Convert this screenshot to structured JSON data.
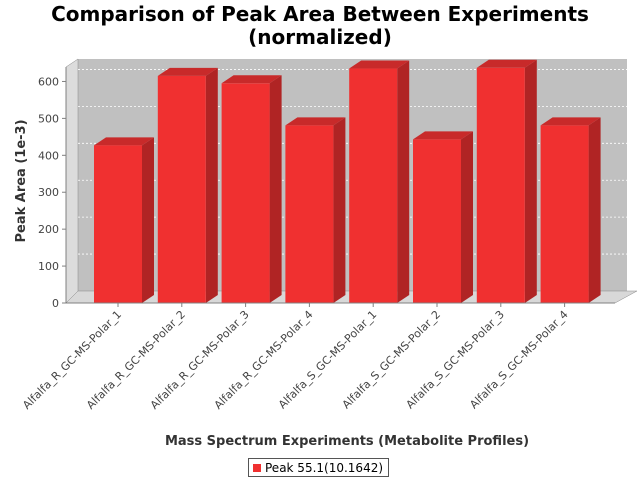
{
  "chart_data": {
    "type": "bar",
    "title_line1": "Comparison of Peak Area Between Experiments",
    "title_line2": "(normalized)",
    "xlabel": "Mass Spectrum Experiments (Metabolite Profiles)",
    "ylabel": "Peak Area (1e-3)",
    "categories": [
      "Alfalfa_R_GC-MS-Polar_1",
      "Alfalfa_R_GC-MS-Polar_2",
      "Alfalfa_R_GC-MS-Polar_3",
      "Alfalfa_R_GC-MS-Polar_4",
      "Alfalfa_S_GC-MS-Polar_1",
      "Alfalfa_S_GC-MS-Polar_2",
      "Alfalfa_S_GC-MS-Polar_3",
      "Alfalfa_S_GC-MS-Polar_4"
    ],
    "series": [
      {
        "name": "Peak 55.1(10.1642)",
        "values": [
          427,
          615,
          595,
          481,
          635,
          443,
          637,
          481
        ]
      }
    ],
    "ylim": [
      0,
      650
    ],
    "yticks": [
      0,
      100,
      200,
      300,
      400,
      500,
      600
    ],
    "grid": true,
    "style": "3d",
    "legend_position": "bottom",
    "colors": {
      "bar_front": "#f03030",
      "bar_side": "#b02424",
      "bar_top": "#c82a2a",
      "plot_back": "#c0c0c0",
      "plot_left_wall": "#dcdcdc",
      "plot_floor": "#d8d8d8"
    }
  }
}
